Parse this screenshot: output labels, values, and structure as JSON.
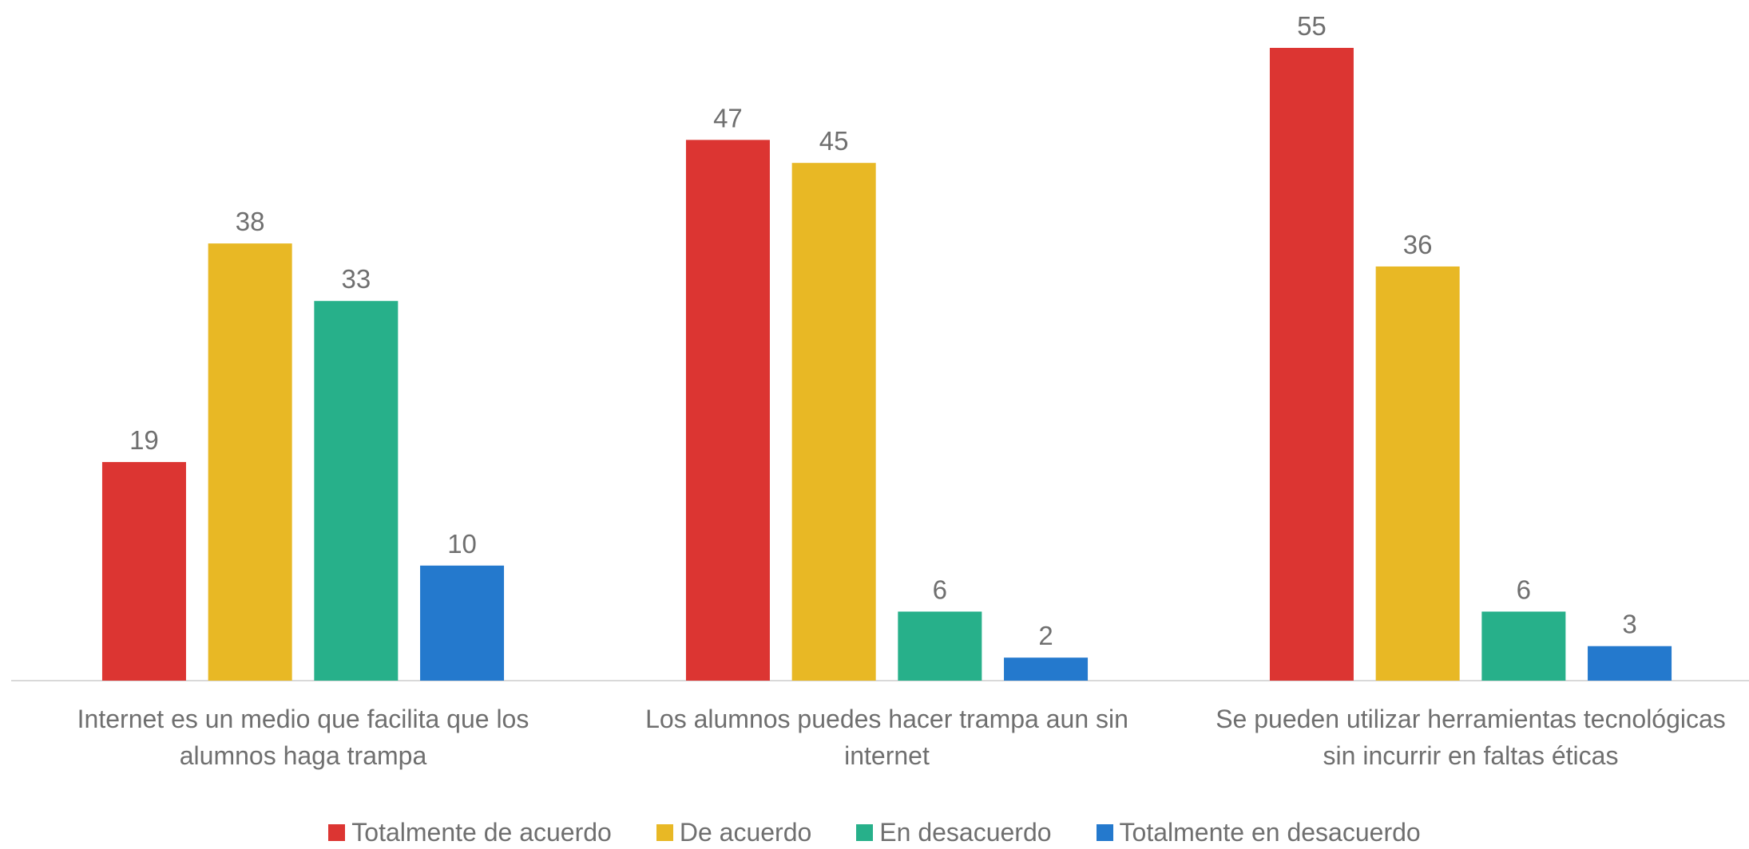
{
  "chart_data": {
    "type": "bar",
    "categories": [
      "Internet es un medio que facilita que los alumnos haga trampa",
      "Los alumnos puedes hacer trampa aun sin internet",
      "Se pueden utilizar herramientas tecnológicas sin incurrir en faltas éticas"
    ],
    "series": [
      {
        "name": "Totalmente de acuerdo",
        "color": "#dc3532",
        "values": [
          19,
          47,
          55
        ]
      },
      {
        "name": "De acuerdo",
        "color": "#e8b825",
        "values": [
          38,
          45,
          36
        ]
      },
      {
        "name": "En desacuerdo",
        "color": "#27b08a",
        "values": [
          33,
          6,
          6
        ]
      },
      {
        "name": "Totalmente en desacuerdo",
        "color": "#2479cd",
        "values": [
          10,
          2,
          3
        ]
      }
    ],
    "legend": "bottom"
  }
}
